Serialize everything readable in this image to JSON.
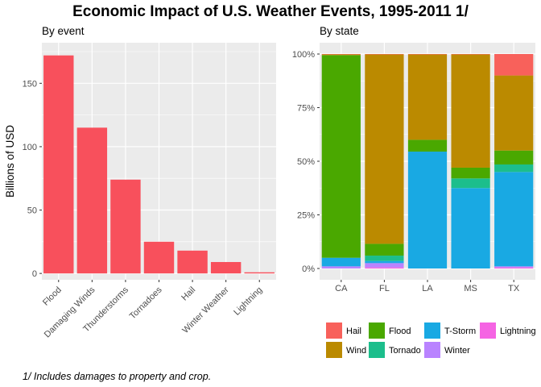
{
  "title": "Economic Impact of U.S. Weather Events, 1995-2011 1/",
  "footnote": "1/ Includes damages to property and crop.",
  "chart_data": [
    {
      "type": "bar",
      "subtitle": "By event",
      "xlabel": "",
      "ylabel": "Billions of USD",
      "ylim": [
        -5,
        182
      ],
      "yticks": [
        0,
        50,
        100,
        150
      ],
      "categories": [
        "Flood",
        "Damaging Winds",
        "Thunderstorms",
        "Tornadoes",
        "Hail",
        "Winter Weather",
        "Lightning"
      ],
      "values": [
        172,
        115,
        74,
        25,
        18,
        9,
        0.9
      ],
      "color": "#F8505C",
      "grid": true
    },
    {
      "type": "bar",
      "stacked": "percent",
      "subtitle": "By state",
      "xlabel": "",
      "ylabel": "",
      "ylim": [
        0,
        1
      ],
      "yticks": [
        0,
        0.25,
        0.5,
        0.75,
        1
      ],
      "ytick_labels": [
        "0%",
        "25%",
        "50%",
        "75%",
        "100%"
      ],
      "categories": [
        "CA",
        "FL",
        "LA",
        "MS",
        "TX"
      ],
      "series": [
        {
          "name": "Lightning",
          "color": "#F564E3",
          "values": [
            0.0,
            0.005,
            0.0,
            0.0,
            0.005
          ]
        },
        {
          "name": "Winter",
          "color": "#B983FF",
          "values": [
            0.01,
            0.02,
            0.0,
            0.0,
            0.005
          ]
        },
        {
          "name": "T-Storm",
          "color": "#19A9E3",
          "values": [
            0.04,
            0.01,
            0.545,
            0.375,
            0.44
          ]
        },
        {
          "name": "Tornado",
          "color": "#1CBE8C",
          "values": [
            0.0,
            0.025,
            0.0,
            0.045,
            0.035
          ]
        },
        {
          "name": "Flood",
          "color": "#4AA800",
          "values": [
            0.945,
            0.055,
            0.055,
            0.05,
            0.065
          ]
        },
        {
          "name": "Wind",
          "color": "#BB8A00",
          "values": [
            0.003,
            0.883,
            0.398,
            0.528,
            0.35
          ]
        },
        {
          "name": "Hail",
          "color": "#F8615B",
          "values": [
            0.002,
            0.002,
            0.002,
            0.002,
            0.1
          ]
        }
      ],
      "legend": {
        "position": "bottom",
        "order": [
          "Hail",
          "Flood",
          "T-Storm",
          "Lightning",
          "Wind",
          "Tornado",
          "Winter"
        ]
      },
      "grid": true
    }
  ]
}
